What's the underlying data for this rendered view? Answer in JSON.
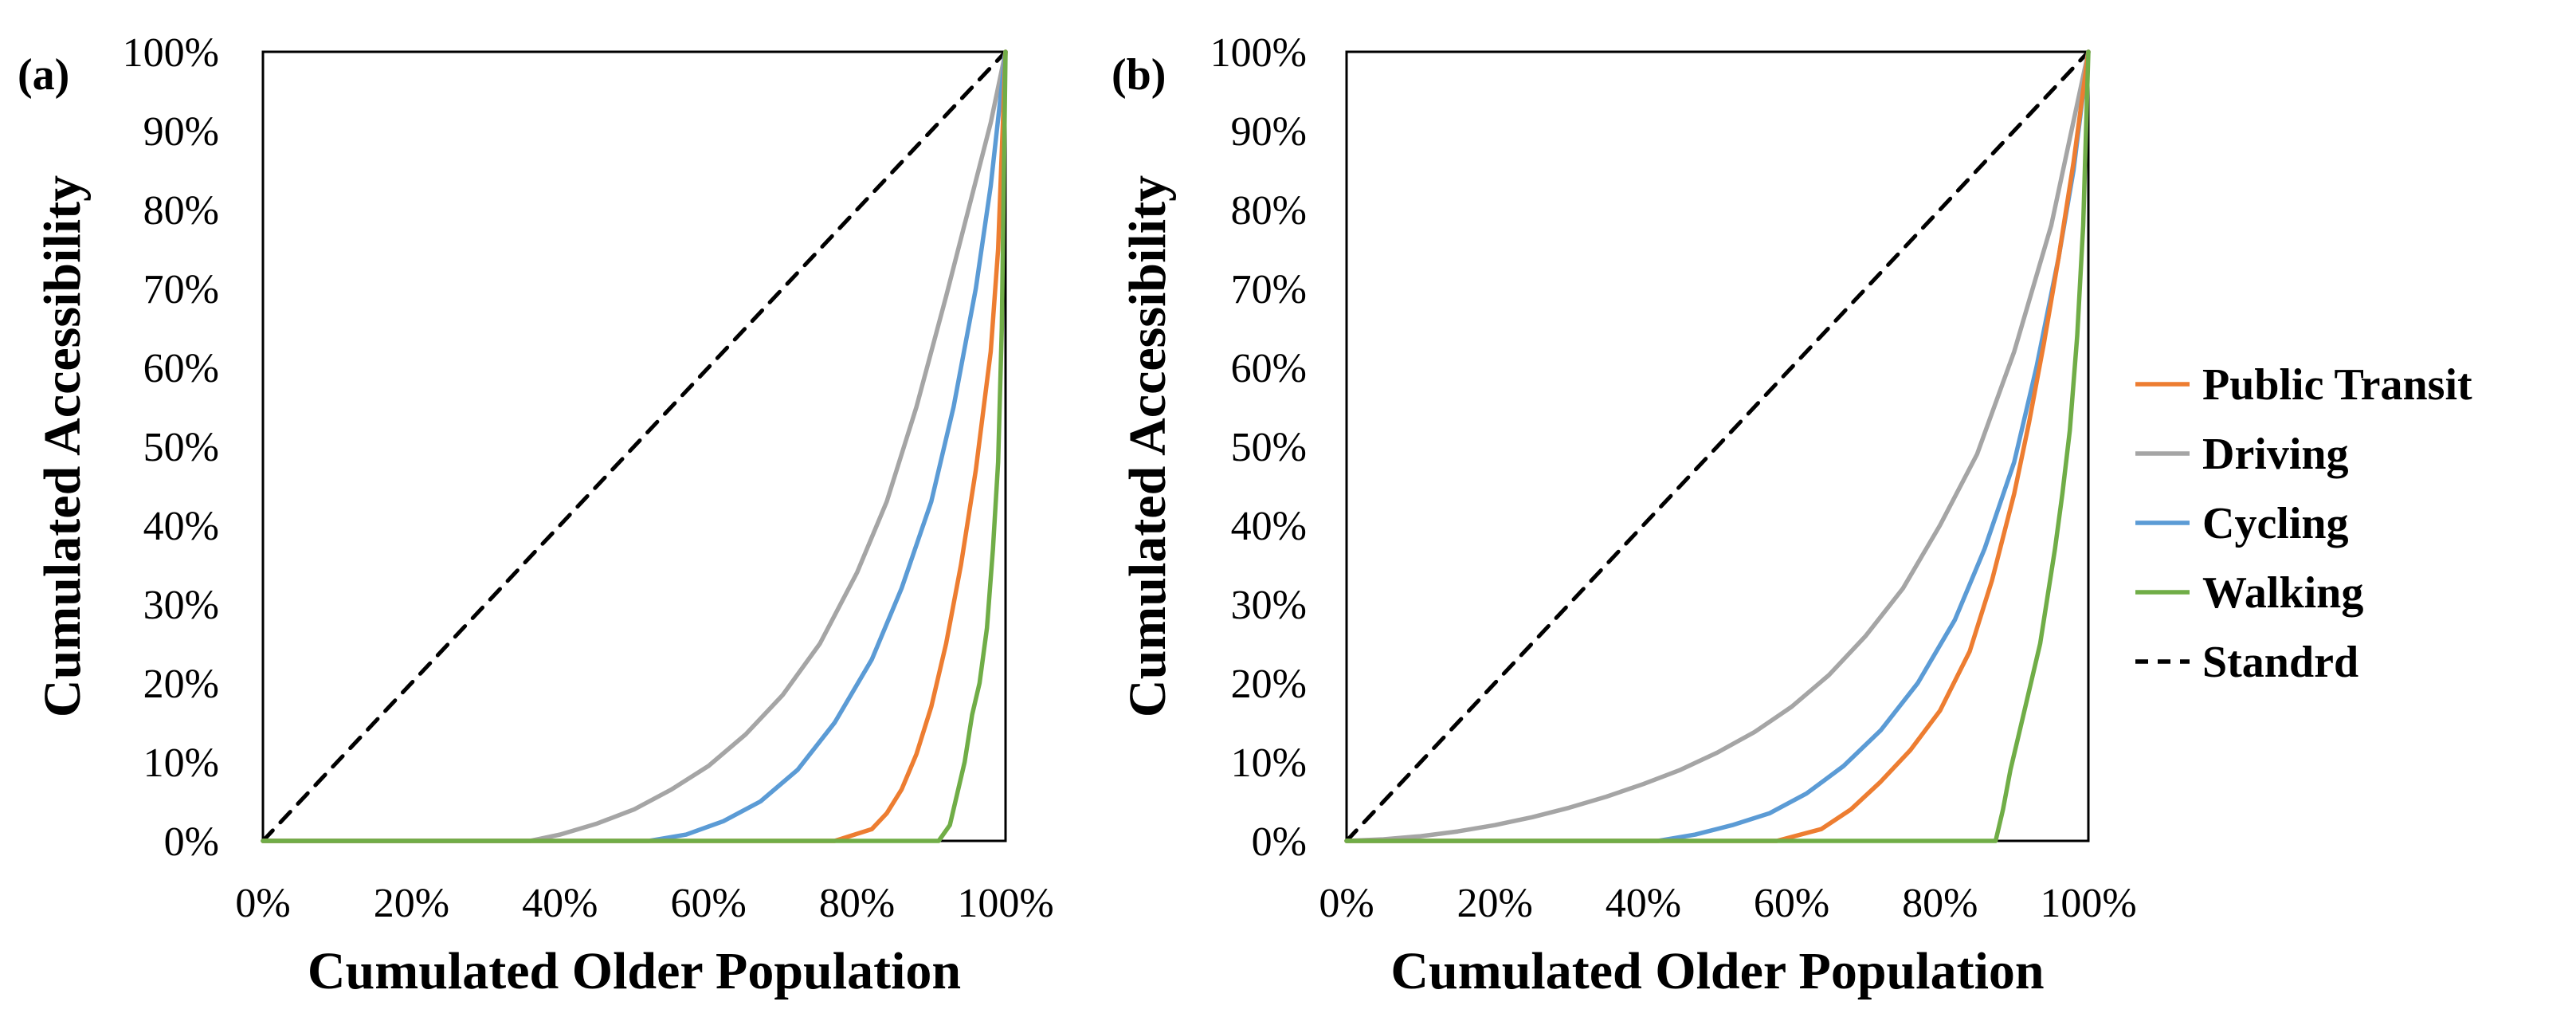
{
  "chart_data": [
    {
      "type": "line",
      "panel_label": "(a)",
      "xlabel": "Cumulated Older Population",
      "ylabel": "Cumulated Accessibility",
      "xlim": [
        0,
        100
      ],
      "ylim": [
        0,
        100
      ],
      "x_ticks": [
        "0%",
        "20%",
        "40%",
        "60%",
        "80%",
        "100%"
      ],
      "y_ticks": [
        "0%",
        "10%",
        "20%",
        "30%",
        "40%",
        "50%",
        "60%",
        "70%",
        "80%",
        "90%",
        "100%"
      ],
      "series": [
        {
          "name": "Standrd",
          "x": [
            0,
            100
          ],
          "y": [
            0,
            100
          ]
        },
        {
          "name": "Driving",
          "x": [
            0,
            36,
            40,
            45,
            50,
            55,
            60,
            65,
            70,
            75,
            80,
            84,
            88,
            92,
            95,
            98,
            100
          ],
          "y": [
            0,
            0,
            0.8,
            2.2,
            4,
            6.5,
            9.5,
            13.5,
            18.5,
            25,
            34,
            43,
            55,
            69,
            80,
            91,
            100
          ]
        },
        {
          "name": "Cycling",
          "x": [
            0,
            52,
            57,
            62,
            67,
            72,
            77,
            82,
            86,
            90,
            93,
            96,
            98,
            100
          ],
          "y": [
            0,
            0,
            0.8,
            2.5,
            5,
            9,
            15,
            23,
            32,
            43,
            55,
            70,
            83,
            100
          ]
        },
        {
          "name": "Public Transit",
          "x": [
            0,
            77,
            82,
            84,
            86,
            88,
            90,
            92,
            94,
            96,
            98,
            99,
            100
          ],
          "y": [
            0,
            0,
            1.5,
            3.5,
            6.5,
            11,
            17,
            25,
            35,
            47,
            62,
            75,
            100
          ]
        },
        {
          "name": "Walking",
          "x": [
            0,
            91,
            92.5,
            93.5,
            94.5,
            95.5,
            96.5,
            97.5,
            98.3,
            99,
            99.5,
            100
          ],
          "y": [
            0,
            0,
            2,
            6,
            10,
            16,
            20,
            27,
            37,
            48,
            65,
            100
          ]
        }
      ]
    },
    {
      "type": "line",
      "panel_label": "(b)",
      "xlabel": "Cumulated Older Population",
      "ylabel": "Cumulated Accessibility",
      "xlim": [
        0,
        100
      ],
      "ylim": [
        0,
        100
      ],
      "x_ticks": [
        "0%",
        "20%",
        "40%",
        "60%",
        "80%",
        "100%"
      ],
      "y_ticks": [
        "0%",
        "10%",
        "20%",
        "30%",
        "40%",
        "50%",
        "60%",
        "70%",
        "80%",
        "90%",
        "100%"
      ],
      "series": [
        {
          "name": "Standrd",
          "x": [
            0,
            100
          ],
          "y": [
            0,
            100
          ]
        },
        {
          "name": "Driving",
          "x": [
            0,
            5,
            10,
            15,
            20,
            25,
            30,
            35,
            40,
            45,
            50,
            55,
            60,
            65,
            70,
            75,
            80,
            85,
            90,
            95,
            100
          ],
          "y": [
            0,
            0.2,
            0.6,
            1.2,
            2,
            3,
            4.2,
            5.6,
            7.2,
            9,
            11.2,
            13.8,
            17,
            21,
            26,
            32,
            40,
            49,
            62,
            78,
            100
          ]
        },
        {
          "name": "Cycling",
          "x": [
            0,
            42,
            47,
            52,
            57,
            62,
            67,
            72,
            77,
            82,
            86,
            90,
            93,
            96,
            98,
            100
          ],
          "y": [
            0,
            0,
            0.8,
            2,
            3.5,
            6,
            9.5,
            14,
            20,
            28,
            37,
            48,
            60,
            74,
            85,
            100
          ]
        },
        {
          "name": "Public Transit",
          "x": [
            0,
            58,
            64,
            68,
            72,
            76,
            80,
            84,
            87,
            90,
            92,
            94,
            96,
            98,
            100
          ],
          "y": [
            0,
            0,
            1.5,
            4,
            7.5,
            11.5,
            16.5,
            24,
            33,
            44,
            53,
            63,
            74,
            86,
            100
          ]
        },
        {
          "name": "Walking",
          "x": [
            0,
            87.5,
            88.5,
            89.5,
            90.5,
            91.5,
            92.5,
            93.5,
            94.5,
            95.5,
            96.5,
            97.5,
            98.5,
            99.3,
            100
          ],
          "y": [
            0,
            0,
            4,
            9,
            13,
            17,
            21,
            25,
            31,
            37,
            44,
            52,
            64,
            78,
            100
          ]
        }
      ]
    }
  ],
  "legend": [
    {
      "label": "Public Transit",
      "color": "#ED7D31",
      "dashed": false
    },
    {
      "label": "Driving",
      "color": "#A5A5A5",
      "dashed": false
    },
    {
      "label": "Cycling",
      "color": "#5B9BD5",
      "dashed": false
    },
    {
      "label": "Walking",
      "color": "#70AD47",
      "dashed": false
    },
    {
      "label": "Standrd",
      "color": "#000000",
      "dashed": true
    }
  ],
  "colors": {
    "Public Transit": "#ED7D31",
    "Driving": "#A5A5A5",
    "Cycling": "#5B9BD5",
    "Walking": "#70AD47",
    "Standrd": "#000000"
  }
}
